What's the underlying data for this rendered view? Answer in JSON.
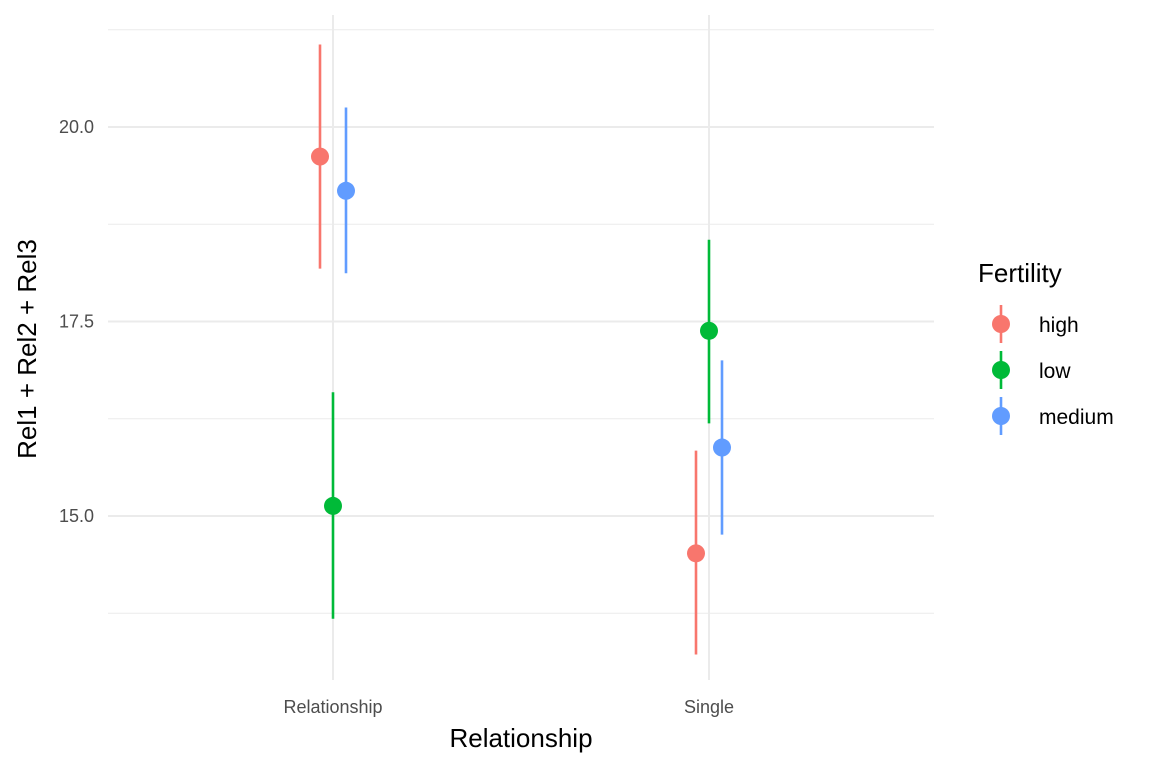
{
  "chart_data": {
    "type": "scatter",
    "title": "",
    "xlabel": "Relationship",
    "ylabel": "Rel1 + Rel2 + Rel3",
    "categories": [
      "Relationship",
      "Single"
    ],
    "ylim": [
      12.8,
      21.45
    ],
    "yticks": [
      15.0,
      17.5,
      20.0
    ],
    "ytick_labels": [
      "15.0",
      "17.5",
      "20.0"
    ],
    "grid": true,
    "legend": {
      "title": "Fertility",
      "placement": "right"
    },
    "series": [
      {
        "name": "high",
        "color": "#F8766D",
        "points": [
          {
            "category": "Relationship",
            "y": 19.62,
            "lower": 18.18,
            "upper": 21.06
          },
          {
            "category": "Single",
            "y": 14.52,
            "lower": 13.22,
            "upper": 15.84
          }
        ]
      },
      {
        "name": "low",
        "color": "#00BA38",
        "points": [
          {
            "category": "Relationship",
            "y": 15.13,
            "lower": 13.68,
            "upper": 16.59
          },
          {
            "category": "Single",
            "y": 17.38,
            "lower": 16.19,
            "upper": 18.55
          }
        ]
      },
      {
        "name": "medium",
        "color": "#619CFF",
        "points": [
          {
            "category": "Relationship",
            "y": 19.18,
            "lower": 18.12,
            "upper": 20.25
          },
          {
            "category": "Single",
            "y": 15.88,
            "lower": 14.76,
            "upper": 17.0
          }
        ]
      }
    ]
  }
}
